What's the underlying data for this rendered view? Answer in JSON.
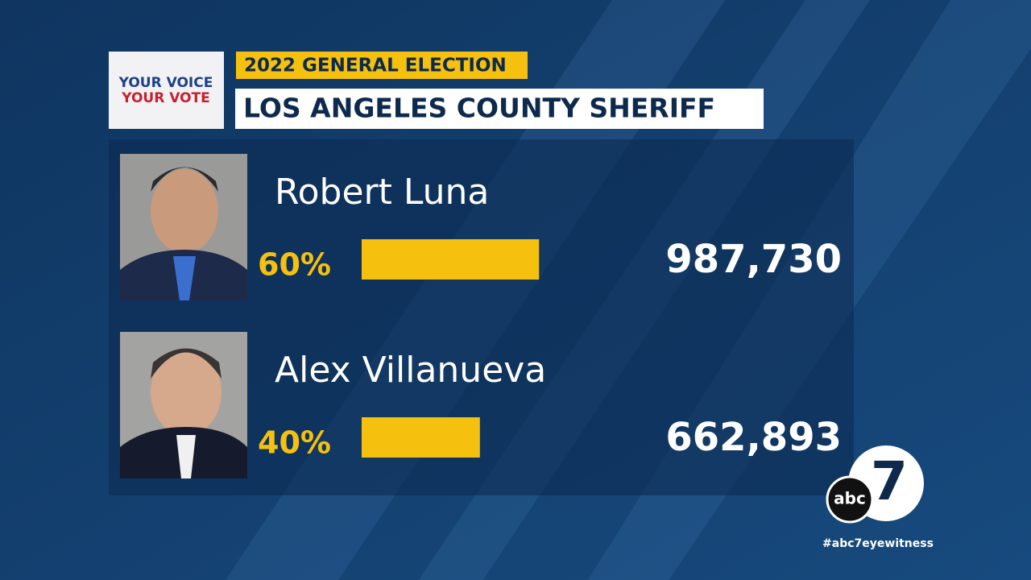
{
  "chart_data": {
    "type": "bar",
    "subtitle": "2022 GENERAL ELECTION",
    "title": "LOS ANGELES COUNTY SHERIFF",
    "categories": [
      "Robert Luna",
      "Alex Villanueva"
    ],
    "values": [
      60,
      40
    ],
    "value_labels": [
      "60%",
      "40%"
    ],
    "votes": [
      987730,
      662893
    ],
    "vote_labels": [
      "987,730",
      "662,893"
    ],
    "color": "#f6c10e"
  },
  "branding": {
    "logo_line1": "YOUR VOICE",
    "logo_line2": "YOUR VOTE",
    "network": "abc",
    "channel": "7",
    "hashtag": "#abc7eyewitness"
  }
}
